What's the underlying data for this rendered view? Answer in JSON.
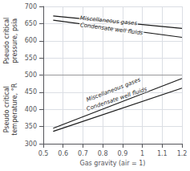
{
  "chart_data": {
    "type": "line",
    "xlabel": "Gas gravity (air = 1)",
    "ylabel": [
      "Pseudo critical\npressure, psia",
      "Pseudo critical\ntemperature, °R"
    ],
    "series": [
      {
        "x": [
          0.55,
          1.2
        ],
        "values": [
          672,
          636
        ]
      },
      {
        "x": [
          0.55,
          1.2
        ],
        "values": [
          660,
          610
        ]
      },
      {
        "x": [
          0.55,
          1.2
        ],
        "values": [
          345,
          490
        ]
      },
      {
        "x": [
          0.55,
          1.2
        ],
        "values": [
          336,
          462
        ]
      }
    ],
    "color": "#1a1a1a",
    "xlim": [
      0.5,
      1.2
    ],
    "xticks": [
      0.5,
      0.6,
      0.7,
      0.8,
      0.9,
      1.0,
      1.1,
      1.2
    ],
    "ylim": [
      300,
      700
    ],
    "yticks": [
      300,
      350,
      400,
      450,
      500,
      550,
      600,
      650,
      700
    ],
    "grid": true,
    "hline": 500,
    "annotations": [
      {
        "text": "Miscellaneous gases",
        "x": 0.68,
        "y": 658
      },
      {
        "text": "Condensate well fluids",
        "x": 0.68,
        "y": 638
      },
      {
        "text": "Miscellaneous gases",
        "x": 0.72,
        "y": 418
      },
      {
        "text": "Condensate well fluids",
        "x": 0.72,
        "y": 392
      }
    ]
  }
}
